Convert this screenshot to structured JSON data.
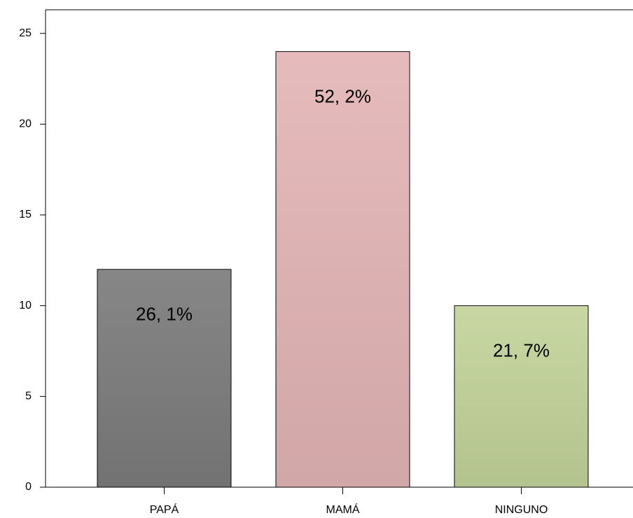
{
  "chart_data": {
    "type": "bar",
    "categories": [
      "PAPÁ",
      "MAMÁ",
      "NINGUNO"
    ],
    "values": [
      12,
      24,
      10
    ],
    "colors": [
      "#7c7c7c",
      "#e4b5b5",
      "#c3d49b"
    ],
    "annotations": [
      "26, 1%",
      "52, 2%",
      "21, 7%"
    ],
    "ylim": [
      0,
      26.3
    ],
    "yticks": [
      0,
      5,
      10,
      15,
      20,
      25
    ],
    "grid": false
  }
}
